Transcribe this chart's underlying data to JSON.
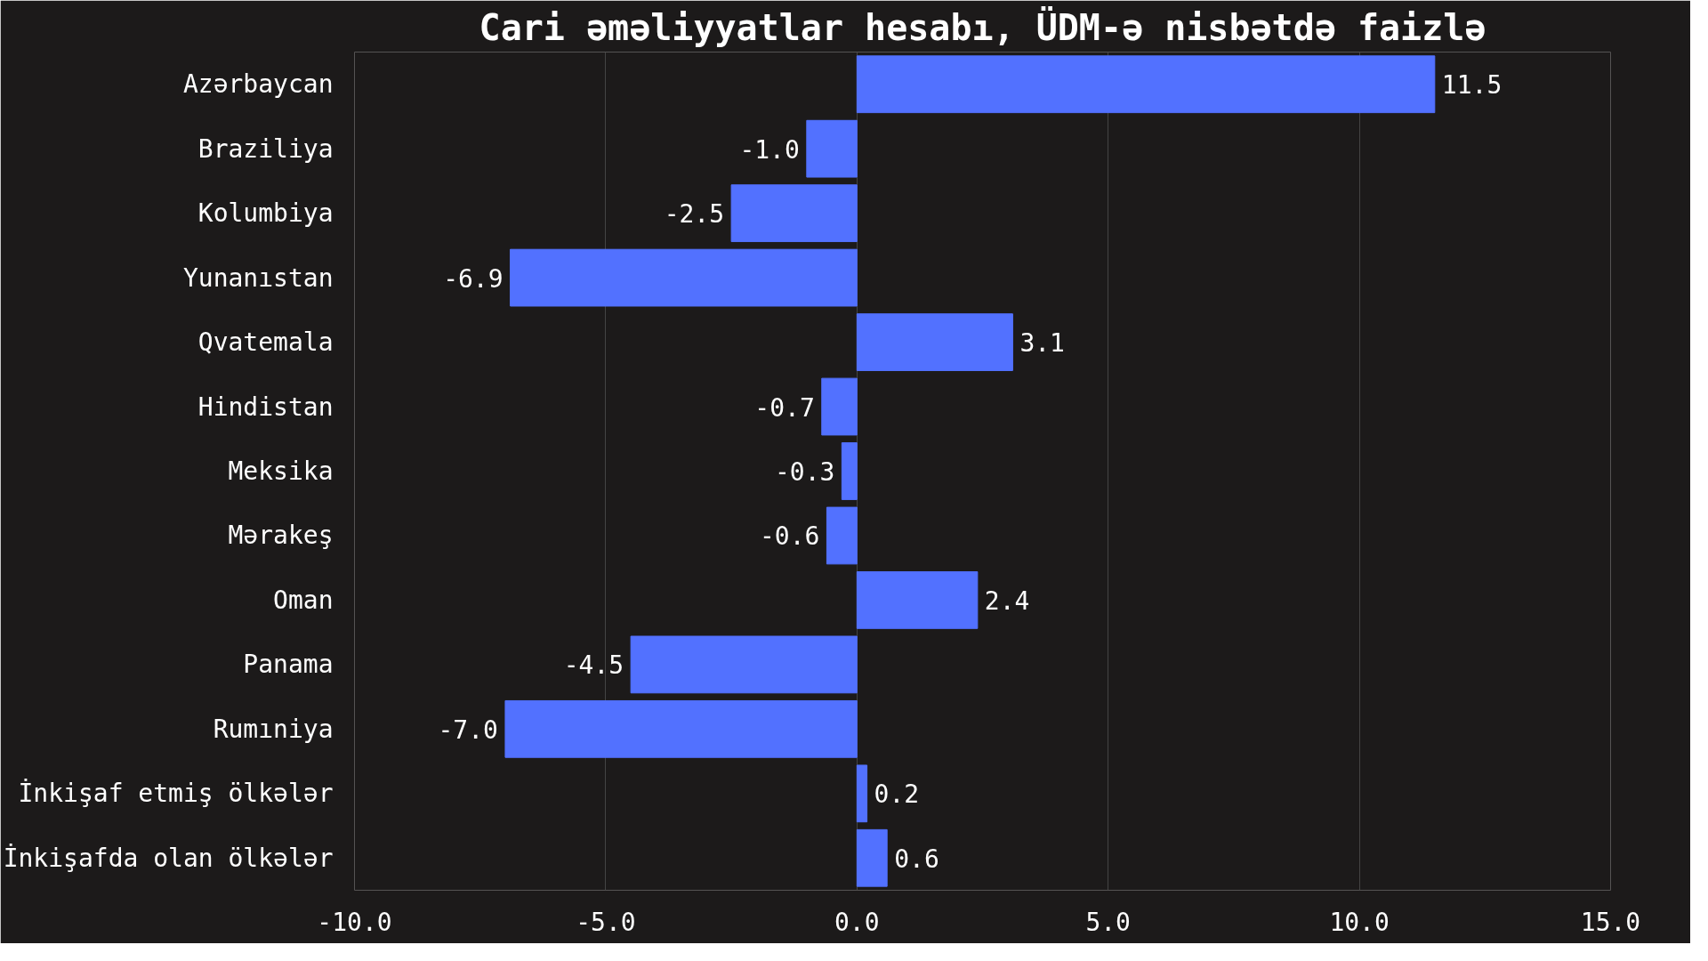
{
  "chart_data": {
    "type": "bar",
    "orientation": "horizontal",
    "title": "Cari əməliyyatlar hesabı, ÜDM-ə nisbətdə faizlə",
    "categories": [
      "Azərbaycan",
      "Braziliya",
      "Kolumbiya",
      "Yunanıstan",
      "Qvatemala",
      "Hindistan",
      "Meksika",
      "Mərakeş",
      "Oman",
      "Panama",
      "Rumıniya",
      "İnkişaf etmiş ölkələr",
      "İnkişafda olan ölkələr"
    ],
    "values": [
      11.5,
      -1.0,
      -2.5,
      -6.9,
      3.1,
      -0.7,
      -0.3,
      -0.6,
      2.4,
      -4.5,
      -7.0,
      0.2,
      0.6
    ],
    "color": "#5271ff",
    "value_labels": [
      "11.5",
      "-1.0",
      "-2.5",
      "-6.9",
      "3.1",
      "-0.7",
      "-0.3",
      "-0.6",
      "2.4",
      "-4.5",
      "-7.0",
      "0.2",
      "0.6"
    ],
    "xlim": [
      -10,
      15
    ],
    "xticks": [
      {
        "value": -10,
        "label": "-10.0"
      },
      {
        "value": -5,
        "label": "-5.0"
      },
      {
        "value": 0,
        "label": "0.0"
      },
      {
        "value": 5,
        "label": "5.0"
      },
      {
        "value": 10,
        "label": "10.0"
      },
      {
        "value": 15,
        "label": "15.0"
      }
    ],
    "grid": "x"
  }
}
